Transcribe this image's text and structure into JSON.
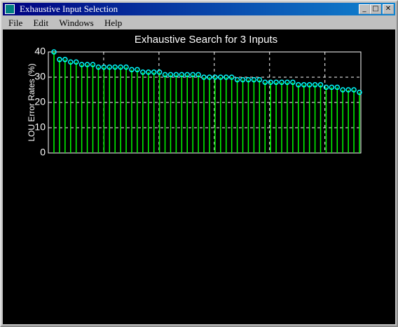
{
  "window": {
    "title": "Exhaustive Input Selection",
    "menu": [
      "File",
      "Edit",
      "Windows",
      "Help"
    ]
  },
  "chart_data": {
    "type": "stem",
    "title": "Exhaustive Search for 3 Inputs",
    "y_label": "LOU Error Rates (%)",
    "categories": [
      null,
      null,
      null,
      null,
      null,
      null,
      null,
      null,
      null,
      null,
      null,
      null,
      null,
      null,
      null,
      null,
      null,
      null,
      null,
      null,
      null,
      null,
      null,
      null,
      null,
      null,
      null,
      null,
      null,
      null,
      null,
      null,
      null,
      null,
      null,
      null,
      null,
      null,
      null,
      null,
      null,
      null,
      null,
      null,
      null,
      null,
      null,
      null,
      null,
      null,
      null,
      null,
      null,
      null,
      null,
      null
    ],
    "values": [
      40,
      37,
      37,
      36,
      36,
      35,
      35,
      35,
      34,
      34,
      34,
      34,
      34,
      34,
      33,
      33,
      32,
      32,
      32,
      32,
      31,
      31,
      31,
      31,
      31,
      31,
      31,
      30,
      30,
      30,
      30,
      30,
      30,
      29,
      29,
      29,
      29,
      29,
      28,
      28,
      28,
      28,
      28,
      28,
      27,
      27,
      27,
      27,
      27,
      26,
      26,
      26,
      25,
      25,
      25,
      24
    ],
    "color": "#00ff00",
    "marker_color": "#00ffff",
    "ylim": [
      0,
      40
    ],
    "yticks": [
      0,
      10,
      20,
      30,
      40
    ],
    "grid": true
  }
}
